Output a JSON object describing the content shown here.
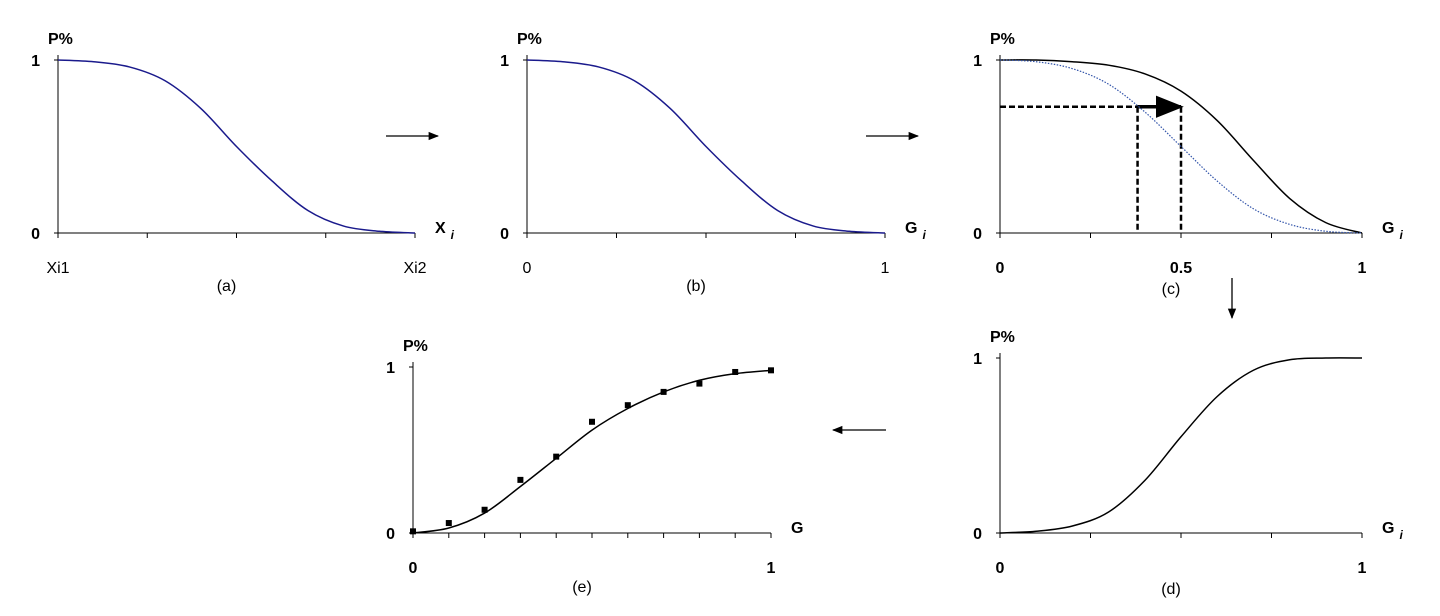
{
  "chart_data": [
    {
      "type": "line",
      "caption": "(a)",
      "ylabel": "P%",
      "xlabel": "X",
      "xlabel_sub": "i",
      "xlim": [
        0,
        1
      ],
      "ylim": [
        0,
        1
      ],
      "xticks": [
        {
          "value": 0,
          "label": "Xi1"
        },
        {
          "value": 1,
          "label": "Xi2"
        }
      ],
      "xminorticks": [
        0.25,
        0.5,
        0.75
      ],
      "yticks": [
        0,
        1
      ],
      "x": [
        0,
        0.1,
        0.2,
        0.3,
        0.4,
        0.5,
        0.6,
        0.7,
        0.8,
        0.9,
        1
      ],
      "series": [
        {
          "color": "#1a1a8c",
          "style": "solid",
          "values": [
            1,
            0.99,
            0.96,
            0.88,
            0.72,
            0.5,
            0.3,
            0.13,
            0.04,
            0.01,
            0
          ]
        }
      ]
    },
    {
      "type": "line",
      "caption": "(b)",
      "ylabel": "P%",
      "xlabel": "G",
      "xlabel_sub": "i",
      "xlim": [
        0,
        1
      ],
      "ylim": [
        0,
        1
      ],
      "xticks": [
        0,
        1
      ],
      "xminorticks": [
        0.25,
        0.5,
        0.75
      ],
      "yticks": [
        0,
        1
      ],
      "x": [
        0,
        0.1,
        0.2,
        0.3,
        0.4,
        0.5,
        0.6,
        0.7,
        0.8,
        0.9,
        1
      ],
      "series": [
        {
          "color": "#1a1a8c",
          "style": "solid",
          "values": [
            1,
            0.99,
            0.96,
            0.88,
            0.72,
            0.5,
            0.3,
            0.13,
            0.04,
            0.01,
            0
          ]
        }
      ]
    },
    {
      "type": "line",
      "caption": "(c)",
      "ylabel": "P%",
      "xlabel": "G",
      "xlabel_sub": "i",
      "xlim": [
        0,
        1
      ],
      "ylim": [
        0,
        1
      ],
      "xticks": [
        0,
        0.5,
        1
      ],
      "xminorticks": [
        0.25,
        0.75
      ],
      "yticks": [
        0,
        1
      ],
      "x": [
        0,
        0.1,
        0.2,
        0.3,
        0.4,
        0.5,
        0.6,
        0.7,
        0.8,
        0.9,
        1
      ],
      "series": [
        {
          "color": "#000000",
          "style": "solid",
          "values": [
            1,
            1,
            0.99,
            0.97,
            0.92,
            0.82,
            0.65,
            0.42,
            0.2,
            0.06,
            0
          ]
        },
        {
          "color": "#3355aa",
          "style": "dotted",
          "values": [
            1,
            0.99,
            0.95,
            0.86,
            0.7,
            0.5,
            0.3,
            0.14,
            0.05,
            0.01,
            0
          ]
        }
      ],
      "guide": {
        "y": 0.73,
        "x_from": 0.38,
        "x_to": 0.5
      }
    },
    {
      "type": "line",
      "caption": "(d)",
      "ylabel": "P%",
      "xlabel": "G",
      "xlabel_sub": "i",
      "xlim": [
        0,
        1
      ],
      "ylim": [
        0,
        1
      ],
      "xticks": [
        0,
        1
      ],
      "xminorticks": [
        0.25,
        0.5,
        0.75
      ],
      "yticks": [
        0,
        1
      ],
      "x": [
        0,
        0.1,
        0.2,
        0.3,
        0.4,
        0.5,
        0.6,
        0.7,
        0.8,
        0.9,
        1
      ],
      "series": [
        {
          "color": "#000000",
          "style": "solid",
          "values": [
            0,
            0.01,
            0.04,
            0.12,
            0.3,
            0.55,
            0.78,
            0.93,
            0.99,
            1,
            1
          ]
        }
      ]
    },
    {
      "type": "line",
      "caption": "(e)",
      "ylabel": "P%",
      "xlabel": "G",
      "xlim": [
        0,
        1
      ],
      "ylim": [
        0,
        1
      ],
      "xticks": [
        0,
        1
      ],
      "xminorticks": [
        0.1,
        0.2,
        0.3,
        0.4,
        0.5,
        0.6,
        0.7,
        0.8,
        0.9
      ],
      "yticks": [
        0,
        1
      ],
      "x": [
        0,
        0.1,
        0.2,
        0.3,
        0.4,
        0.5,
        0.6,
        0.7,
        0.8,
        0.9,
        1
      ],
      "series": [
        {
          "color": "#000000",
          "style": "solid",
          "values": [
            0,
            0.03,
            0.12,
            0.28,
            0.45,
            0.62,
            0.75,
            0.85,
            0.92,
            0.96,
            0.98
          ]
        },
        {
          "color": "#000000",
          "style": "markers",
          "values": [
            0.01,
            0.06,
            0.14,
            0.32,
            0.46,
            0.67,
            0.77,
            0.85,
            0.9,
            0.97,
            0.98
          ]
        }
      ]
    }
  ]
}
